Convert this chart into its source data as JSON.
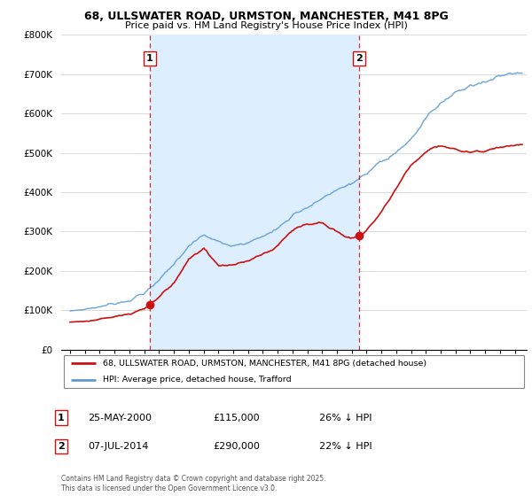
{
  "title1": "68, ULLSWATER ROAD, URMSTON, MANCHESTER, M41 8PG",
  "title2": "Price paid vs. HM Land Registry's House Price Index (HPI)",
  "ylim": [
    0,
    800000
  ],
  "yticks": [
    0,
    100000,
    200000,
    300000,
    400000,
    500000,
    600000,
    700000,
    800000
  ],
  "ytick_labels": [
    "£0",
    "£100K",
    "£200K",
    "£300K",
    "£400K",
    "£500K",
    "£600K",
    "£700K",
    "£800K"
  ],
  "sale1_date": 2000.38,
  "sale1_price": 115000,
  "sale2_date": 2014.5,
  "sale2_price": 290000,
  "hpi_color": "#5b9bd5",
  "price_color": "#cc1111",
  "dashed_color": "#cc1111",
  "shading_color": "#ddeeff",
  "chart_bg": "#ffffff",
  "legend_label1": "68, ULLSWATER ROAD, URMSTON, MANCHESTER, M41 8PG (detached house)",
  "legend_label2": "HPI: Average price, detached house, Trafford",
  "table_rows": [
    {
      "num": "1",
      "date": "25-MAY-2000",
      "price": "£115,000",
      "hpi": "26% ↓ HPI"
    },
    {
      "num": "2",
      "date": "07-JUL-2014",
      "price": "£290,000",
      "hpi": "22% ↓ HPI"
    }
  ],
  "footnote": "Contains HM Land Registry data © Crown copyright and database right 2025.\nThis data is licensed under the Open Government Licence v3.0.",
  "hpi_key_t": [
    0,
    1,
    2,
    3,
    4,
    5,
    6,
    7,
    8,
    9,
    10,
    11,
    12,
    13,
    14,
    15,
    16,
    17,
    18,
    19,
    20,
    21,
    22,
    23,
    24,
    25,
    26,
    27,
    28,
    29,
    30
  ],
  "hpi_key_v": [
    98000,
    101000,
    106000,
    114000,
    124000,
    138000,
    168000,
    210000,
    270000,
    300000,
    285000,
    275000,
    285000,
    300000,
    320000,
    355000,
    380000,
    400000,
    415000,
    430000,
    450000,
    470000,
    490000,
    520000,
    570000,
    610000,
    640000,
    660000,
    670000,
    690000,
    700000
  ],
  "price_key_t": [
    0,
    1,
    2,
    3,
    4,
    5,
    6,
    7,
    8,
    9,
    10,
    11,
    12,
    13,
    14,
    15,
    16,
    17,
    18,
    19,
    20,
    21,
    22,
    23,
    24,
    25,
    26,
    27,
    28,
    29,
    30
  ],
  "price_key_v": [
    70000,
    73000,
    78000,
    85000,
    93000,
    105000,
    133000,
    168000,
    230000,
    255000,
    210000,
    210000,
    220000,
    240000,
    260000,
    305000,
    340000,
    370000,
    385000,
    395000,
    415000,
    440000,
    460000,
    490000,
    510000,
    520000,
    510000,
    505000,
    510000,
    520000,
    525000
  ]
}
